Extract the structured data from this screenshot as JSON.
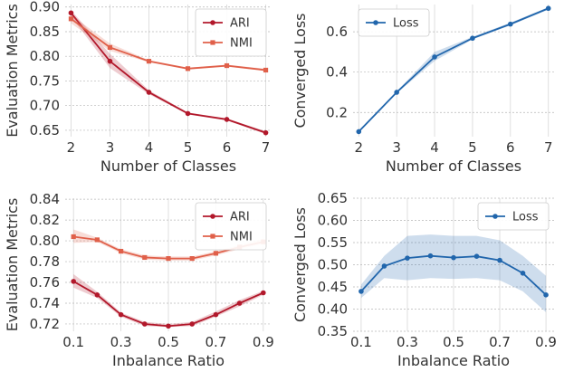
{
  "chart_data": [
    {
      "type": "line",
      "xlabel": "Number of Classes",
      "ylabel": "Evaluation Metrics",
      "x": [
        2,
        3,
        4,
        5,
        6,
        7
      ],
      "xticks": [
        "2",
        "3",
        "4",
        "5",
        "6",
        "7"
      ],
      "xlim": [
        1.85,
        7.15
      ],
      "yticks": [
        "0.65",
        "0.70",
        "0.75",
        "0.80",
        "0.85",
        "0.90"
      ],
      "ylim": [
        0.637,
        0.905
      ],
      "legend": "top-right",
      "grid": true,
      "series": [
        {
          "name": "ARI",
          "color": "#b2182b",
          "marker": "circle",
          "values": [
            0.888,
            0.79,
            0.727,
            0.684,
            0.672,
            0.645
          ],
          "lower": [
            0.881,
            0.776,
            0.723,
            0.682,
            0.67,
            0.642
          ],
          "upper": [
            0.893,
            0.805,
            0.731,
            0.686,
            0.674,
            0.648
          ]
        },
        {
          "name": "NMI",
          "color": "#e0604a",
          "marker": "square",
          "values": [
            0.876,
            0.818,
            0.79,
            0.775,
            0.781,
            0.772
          ],
          "lower": [
            0.867,
            0.811,
            0.788,
            0.773,
            0.779,
            0.77
          ],
          "upper": [
            0.884,
            0.826,
            0.792,
            0.777,
            0.783,
            0.775
          ]
        }
      ]
    },
    {
      "type": "line",
      "xlabel": "Number of Classes",
      "ylabel": "Converged Loss",
      "x": [
        2,
        3,
        4,
        5,
        6,
        7
      ],
      "xticks": [
        "2",
        "3",
        "4",
        "5",
        "6",
        "7"
      ],
      "xlim": [
        1.85,
        7.15
      ],
      "yticks": [
        "0.2",
        "0.4",
        "0.6"
      ],
      "ylim": [
        0.08,
        0.735
      ],
      "legend": "top-left",
      "grid": true,
      "series": [
        {
          "name": "Loss",
          "color": "#2166ac",
          "marker": "circle",
          "values": [
            0.105,
            0.3,
            0.475,
            0.568,
            0.638,
            0.716
          ],
          "lower": [
            0.1,
            0.295,
            0.455,
            0.562,
            0.632,
            0.71
          ],
          "upper": [
            0.11,
            0.305,
            0.5,
            0.575,
            0.645,
            0.722
          ]
        }
      ]
    },
    {
      "type": "line",
      "xlabel": "Inbalance Ratio",
      "ylabel": "Evaluation Metrics",
      "x": [
        0.1,
        0.2,
        0.3,
        0.4,
        0.5,
        0.6,
        0.7,
        0.8,
        0.9
      ],
      "xticks": [
        "0.1",
        "0.3",
        "0.5",
        "0.7",
        "0.9"
      ],
      "xtick_values": [
        0.1,
        0.3,
        0.5,
        0.7,
        0.9
      ],
      "xlim": [
        0.065,
        0.935
      ],
      "yticks": [
        "0.72",
        "0.74",
        "0.76",
        "0.78",
        "0.80",
        "0.82",
        "0.84"
      ],
      "ylim": [
        0.713,
        0.841
      ],
      "legend": "top-right",
      "grid": true,
      "series": [
        {
          "name": "ARI",
          "color": "#b2182b",
          "marker": "circle",
          "values": [
            0.761,
            0.748,
            0.729,
            0.72,
            0.718,
            0.72,
            0.729,
            0.74,
            0.75
          ],
          "lower": [
            0.755,
            0.745,
            0.727,
            0.718,
            0.717,
            0.718,
            0.727,
            0.737,
            0.748
          ],
          "upper": [
            0.768,
            0.751,
            0.731,
            0.722,
            0.72,
            0.722,
            0.732,
            0.743,
            0.752
          ]
        },
        {
          "name": "NMI",
          "color": "#e0604a",
          "marker": "square",
          "values": [
            0.804,
            0.801,
            0.79,
            0.784,
            0.783,
            0.783,
            0.788,
            0.794,
            0.799
          ],
          "lower": [
            0.798,
            0.799,
            0.788,
            0.782,
            0.781,
            0.781,
            0.786,
            0.792,
            0.797
          ],
          "upper": [
            0.811,
            0.803,
            0.792,
            0.786,
            0.785,
            0.785,
            0.79,
            0.796,
            0.802
          ]
        }
      ]
    },
    {
      "type": "line",
      "xlabel": "Inbalance Ratio",
      "ylabel": "Converged Loss",
      "x": [
        0.1,
        0.2,
        0.3,
        0.4,
        0.5,
        0.6,
        0.7,
        0.8,
        0.9
      ],
      "xticks": [
        "0.1",
        "0.3",
        "0.5",
        "0.7",
        "0.9"
      ],
      "xtick_values": [
        0.1,
        0.3,
        0.5,
        0.7,
        0.9
      ],
      "xlim": [
        0.065,
        0.935
      ],
      "yticks": [
        "0.35",
        "0.40",
        "0.45",
        "0.50",
        "0.55",
        "0.60",
        "0.65"
      ],
      "ylim": [
        0.35,
        0.65
      ],
      "legend": "top-right",
      "grid": true,
      "series": [
        {
          "name": "Loss",
          "color": "#2166ac",
          "marker": "circle",
          "values": [
            0.44,
            0.497,
            0.515,
            0.52,
            0.516,
            0.519,
            0.51,
            0.481,
            0.432
          ],
          "lower": [
            0.425,
            0.47,
            0.465,
            0.47,
            0.468,
            0.47,
            0.465,
            0.44,
            0.393
          ],
          "upper": [
            0.455,
            0.52,
            0.565,
            0.568,
            0.565,
            0.565,
            0.555,
            0.52,
            0.475
          ]
        }
      ]
    }
  ]
}
